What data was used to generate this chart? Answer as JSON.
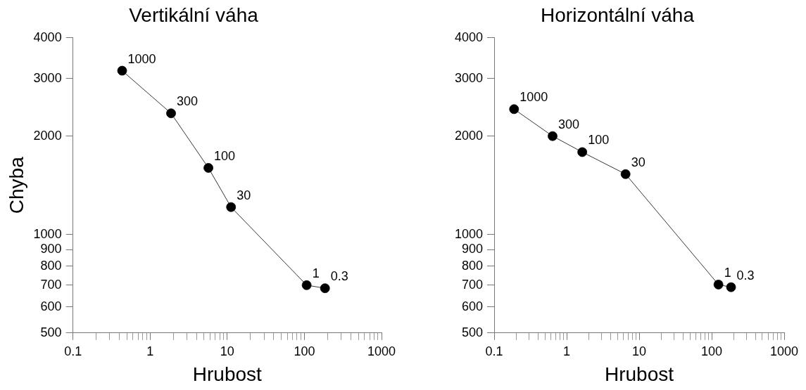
{
  "chart_data": [
    {
      "type": "line",
      "title": "Vertikální váha",
      "xlabel": "Hrubost",
      "ylabel": "Chyba",
      "log": "xy",
      "grid": false,
      "marker": "circle",
      "line_style": "solid",
      "series": [
        {
          "x": [
            0.434,
            1.87,
            5.7,
            11.2,
            107,
            185
          ],
          "values": [
            3170,
            2348,
            1599,
            1213,
            700,
            685
          ],
          "color": "#000000"
        }
      ],
      "xlim": [
        0.1,
        1000
      ],
      "ylim": [
        500,
        4000
      ],
      "xticks": [
        0.1,
        {
          "value": 0.2,
          "label": null
        },
        {
          "value": 0.3,
          "label": null
        },
        {
          "value": 0.4,
          "label": null
        },
        {
          "value": 0.5,
          "label": null
        },
        {
          "value": 0.6,
          "label": null
        },
        {
          "value": 0.7,
          "label": null
        },
        {
          "value": 0.8,
          "label": null
        },
        {
          "value": 0.9,
          "label": null
        },
        1,
        {
          "value": 2,
          "label": null
        },
        {
          "value": 3,
          "label": null
        },
        {
          "value": 4,
          "label": null
        },
        {
          "value": 5,
          "label": null
        },
        {
          "value": 6,
          "label": null
        },
        {
          "value": 7,
          "label": null
        },
        {
          "value": 8,
          "label": null
        },
        {
          "value": 9,
          "label": null
        },
        10,
        {
          "value": 20,
          "label": null
        },
        {
          "value": 30,
          "label": null
        },
        {
          "value": 40,
          "label": null
        },
        {
          "value": 50,
          "label": null
        },
        {
          "value": 60,
          "label": null
        },
        {
          "value": 70,
          "label": null
        },
        {
          "value": 80,
          "label": null
        },
        {
          "value": 90,
          "label": null
        },
        100,
        {
          "value": 200,
          "label": null
        },
        {
          "value": 300,
          "label": null
        },
        {
          "value": 400,
          "label": null
        },
        {
          "value": 500,
          "label": null
        },
        {
          "value": 600,
          "label": null
        },
        {
          "value": 700,
          "label": null
        },
        {
          "value": 800,
          "label": null
        },
        {
          "value": 900,
          "label": null
        },
        1000
      ],
      "yticks": [
        500,
        600,
        700,
        800,
        900,
        1000,
        2000,
        3000,
        4000
      ],
      "annotations": [
        {
          "text": "1000",
          "x": 0.434,
          "y": 3170
        },
        {
          "text": "300",
          "x": 1.87,
          "y": 2348
        },
        {
          "text": "100",
          "x": 5.7,
          "y": 1599
        },
        {
          "text": "30",
          "x": 11.2,
          "y": 1213
        },
        {
          "text": "1",
          "x": 107,
          "y": 700
        },
        {
          "text": "0.3",
          "x": 185,
          "y": 685
        }
      ]
    },
    {
      "type": "line",
      "title": "Horizontální váha",
      "xlabel": "Hrubost",
      "log": "xy",
      "grid": false,
      "marker": "circle",
      "line_style": "solid",
      "series": [
        {
          "x": [
            0.188,
            0.639,
            1.64,
            6.49,
            124,
            185
          ],
          "values": [
            2418,
            2000,
            1787,
            1530,
            703,
            690
          ],
          "color": "#000000"
        }
      ],
      "xlim": [
        0.1,
        1000
      ],
      "ylim": [
        500,
        4000
      ],
      "xticks": [
        0.1,
        {
          "value": 0.2,
          "label": null
        },
        {
          "value": 0.3,
          "label": null
        },
        {
          "value": 0.4,
          "label": null
        },
        {
          "value": 0.5,
          "label": null
        },
        {
          "value": 0.6,
          "label": null
        },
        {
          "value": 0.7,
          "label": null
        },
        {
          "value": 0.8,
          "label": null
        },
        {
          "value": 0.9,
          "label": null
        },
        1,
        {
          "value": 2,
          "label": null
        },
        {
          "value": 3,
          "label": null
        },
        {
          "value": 4,
          "label": null
        },
        {
          "value": 5,
          "label": null
        },
        {
          "value": 6,
          "label": null
        },
        {
          "value": 7,
          "label": null
        },
        {
          "value": 8,
          "label": null
        },
        {
          "value": 9,
          "label": null
        },
        10,
        {
          "value": 20,
          "label": null
        },
        {
          "value": 30,
          "label": null
        },
        {
          "value": 40,
          "label": null
        },
        {
          "value": 50,
          "label": null
        },
        {
          "value": 60,
          "label": null
        },
        {
          "value": 70,
          "label": null
        },
        {
          "value": 80,
          "label": null
        },
        {
          "value": 90,
          "label": null
        },
        100,
        {
          "value": 200,
          "label": null
        },
        {
          "value": 300,
          "label": null
        },
        {
          "value": 400,
          "label": null
        },
        {
          "value": 500,
          "label": null
        },
        {
          "value": 600,
          "label": null
        },
        {
          "value": 700,
          "label": null
        },
        {
          "value": 800,
          "label": null
        },
        {
          "value": 900,
          "label": null
        },
        1000
      ],
      "yticks": [
        500,
        600,
        700,
        800,
        900,
        1000,
        2000,
        3000,
        4000
      ],
      "annotations": [
        {
          "text": "1000",
          "x": 0.188,
          "y": 2418
        },
        {
          "text": "300",
          "x": 0.639,
          "y": 2000
        },
        {
          "text": "100",
          "x": 1.64,
          "y": 1787
        },
        {
          "text": "30",
          "x": 6.49,
          "y": 1530
        },
        {
          "text": "1",
          "x": 124,
          "y": 703
        },
        {
          "text": "0.3",
          "x": 185,
          "y": 690
        }
      ]
    }
  ]
}
